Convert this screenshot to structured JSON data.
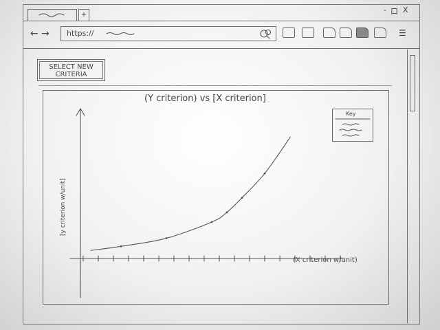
{
  "browser": {
    "tab_new_label": "+",
    "window_controls": {
      "minimize": "-",
      "maximize": "口",
      "close": "X"
    },
    "back_glyph": "←",
    "forward_glyph": "→",
    "url": "https://",
    "search_icon": "search-icon",
    "menu_glyph": "☰"
  },
  "page": {
    "select_button": "SELECT NEW CRITERIA",
    "chart_title": "(Y criterion) vs [X criterion]",
    "key_title": "Key"
  },
  "chart_data": {
    "type": "line",
    "title": "(Y criterion) vs [X criterion]",
    "xlabel": "(X criterion w/unit)",
    "ylabel": "[y criterion w/unit]",
    "legend_title": "Key",
    "legend_position": "top-right",
    "series": [
      {
        "x": [
          1,
          3,
          6,
          9,
          10,
          11,
          12.5,
          14.2
        ],
        "y": [
          0.5,
          1,
          2,
          4,
          5.2,
          7,
          10,
          14.5
        ]
      }
    ],
    "xlim": [
      0,
      17
    ],
    "ylim": [
      -0.5,
      18
    ]
  }
}
